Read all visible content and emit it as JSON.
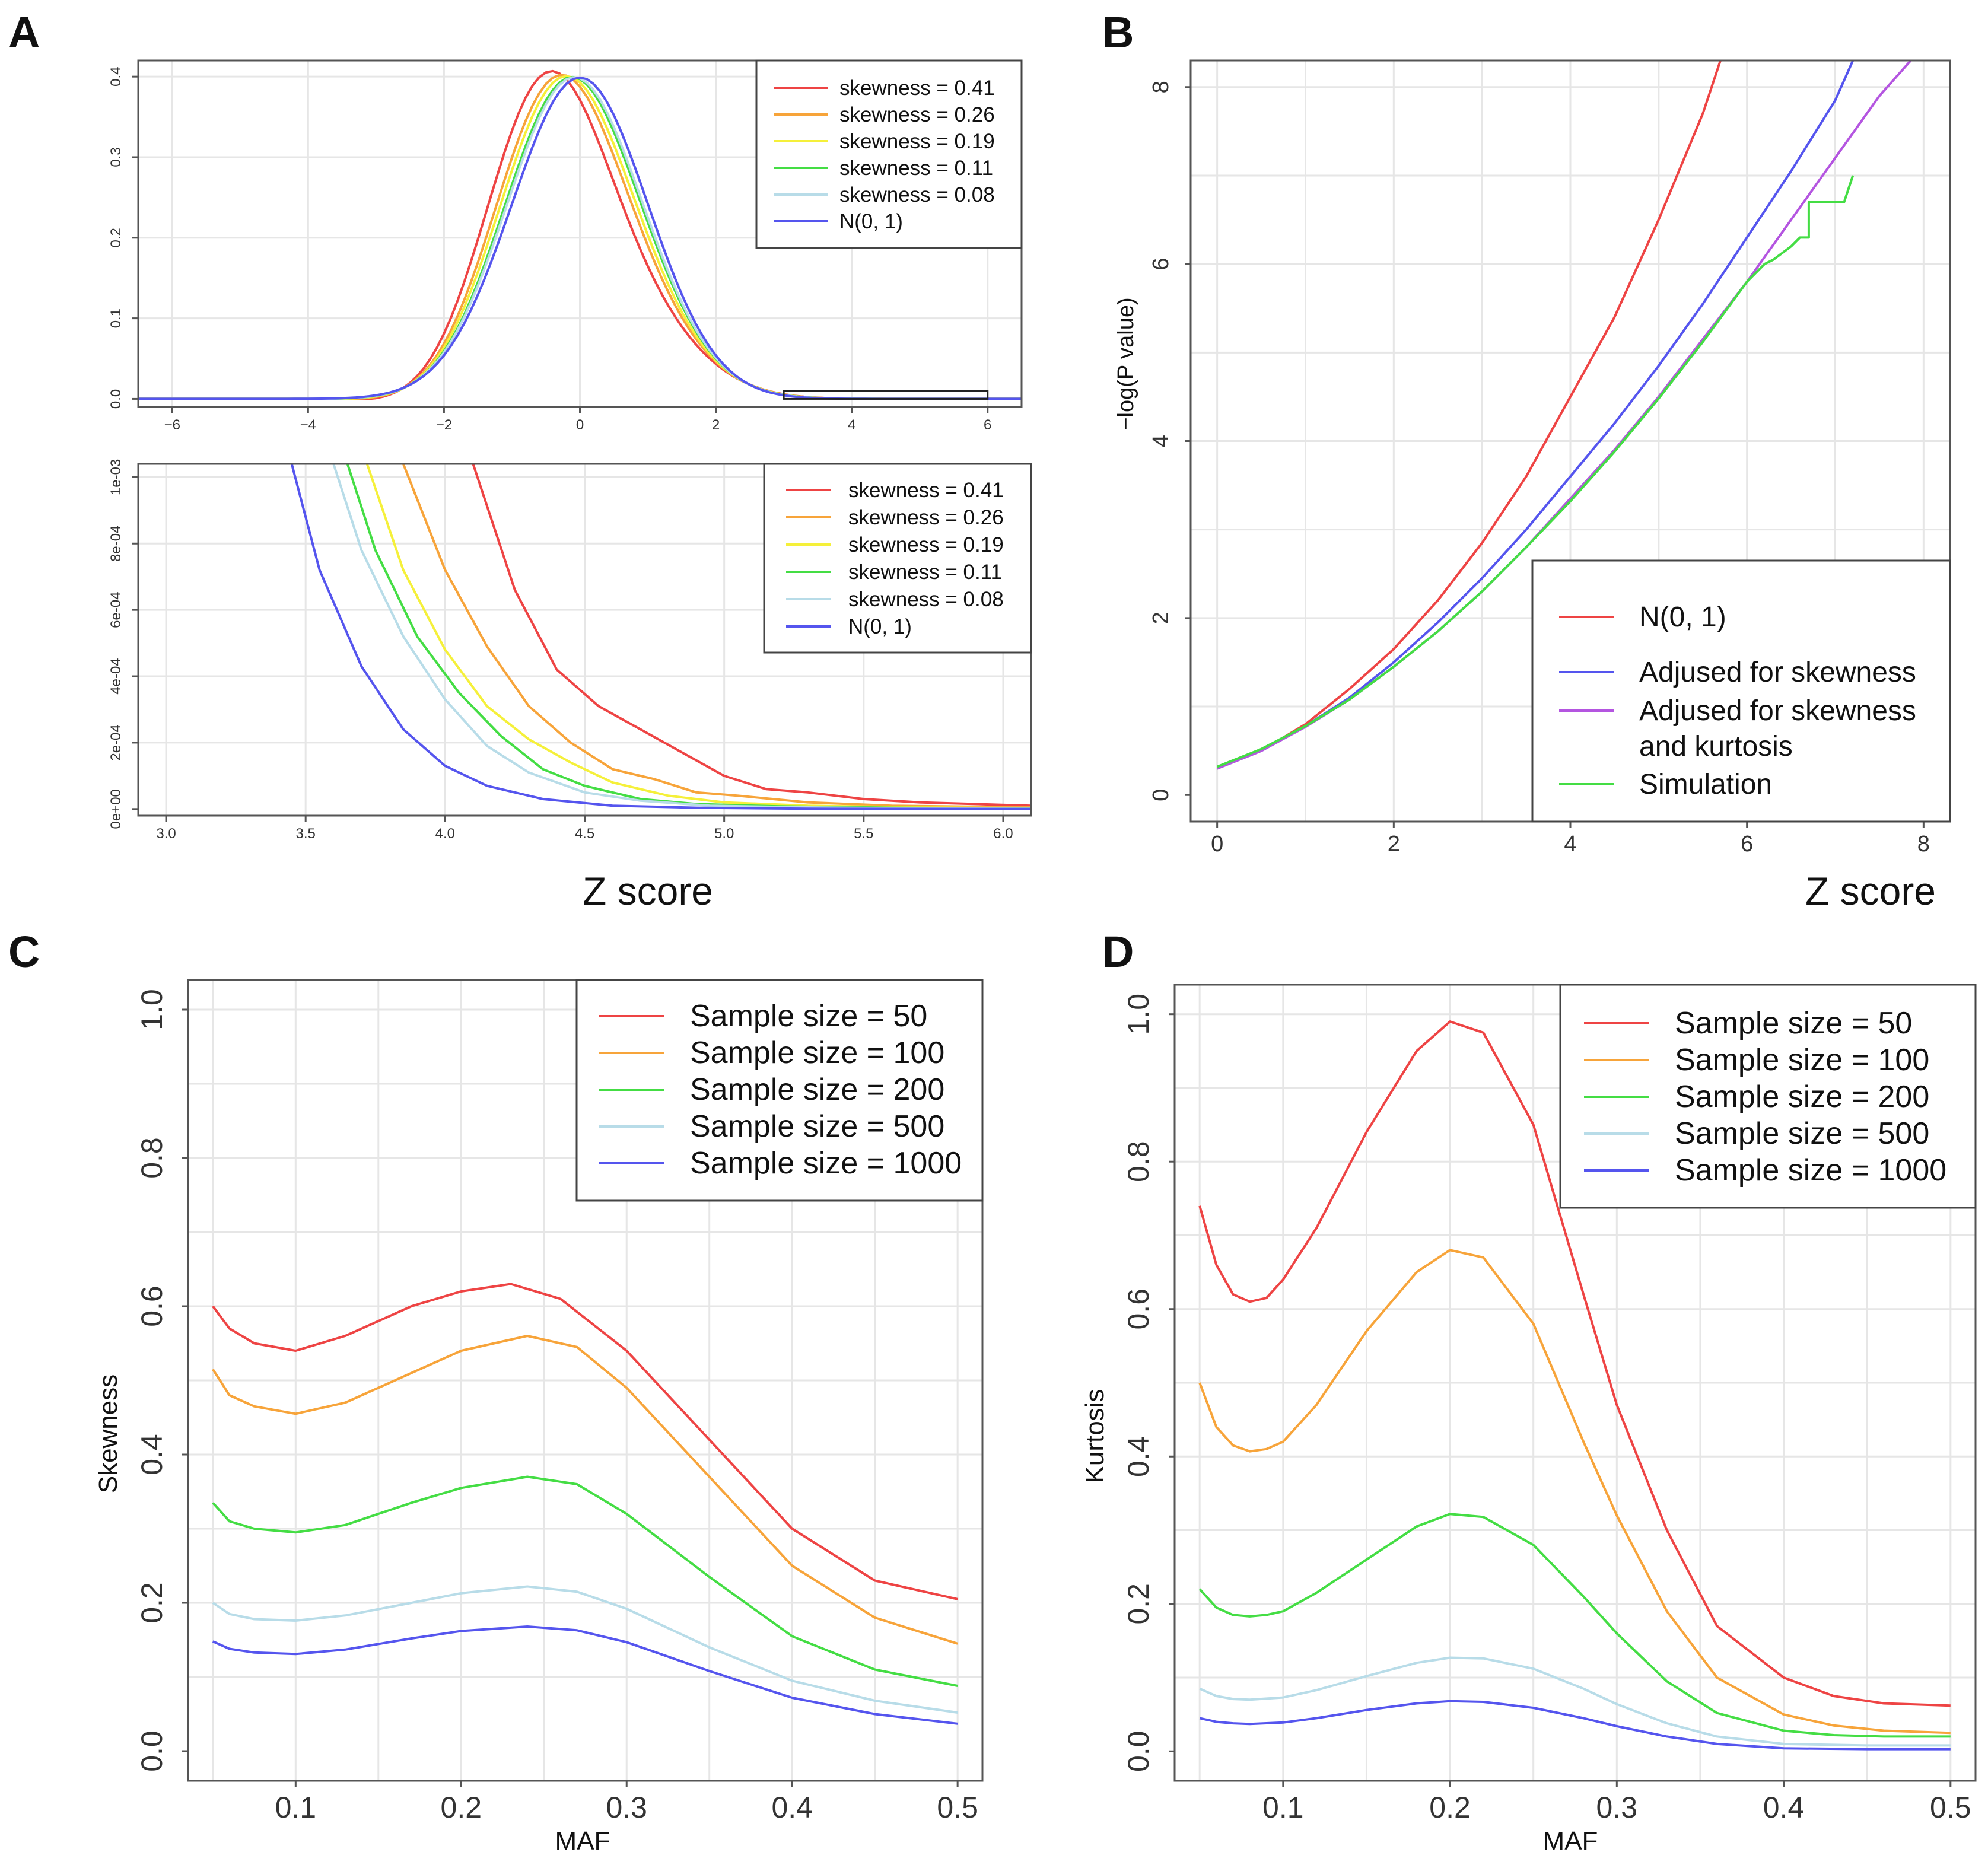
{
  "panels": [
    {
      "id": "A",
      "label": "A"
    },
    {
      "id": "B",
      "label": "B"
    },
    {
      "id": "C",
      "label": "C"
    },
    {
      "id": "D",
      "label": "D"
    }
  ],
  "shared": {
    "z_title": "Z score",
    "colors": {
      "red": "#ee4444",
      "orange": "#f7a43a",
      "yellow": "#f5f03a",
      "green": "#44dd44",
      "lightblue": "#b8dce8",
      "blue": "#5555ee",
      "purple": "#b455e0"
    }
  },
  "chart_data": [
    {
      "id": "A-top",
      "type": "line",
      "title": "",
      "xlabel": "",
      "ylabel": "",
      "xlim": [
        -6.5,
        6.5
      ],
      "ylim": [
        -0.01,
        0.42
      ],
      "xticks": [
        -6,
        -4,
        -2,
        0,
        2,
        4,
        6
      ],
      "xtick_labels": [
        "−6",
        "−4",
        "−2",
        "0",
        "2",
        "4",
        "6"
      ],
      "yticks": [
        0.0,
        0.1,
        0.2,
        0.3,
        0.4
      ],
      "ytick_labels": [
        "0.0",
        "0.1",
        "0.2",
        "0.3",
        "0.4"
      ],
      "series": [
        {
          "name": "skewness = 0.41",
          "color": "#ee4444",
          "skew": 0.41,
          "x": [],
          "y": []
        },
        {
          "name": "skewness = 0.26",
          "color": "#f7a43a",
          "skew": 0.26,
          "x": [],
          "y": []
        },
        {
          "name": "skewness = 0.19",
          "color": "#f5f03a",
          "skew": 0.19,
          "x": [],
          "y": []
        },
        {
          "name": "skewness = 0.11",
          "color": "#44dd44",
          "skew": 0.11,
          "x": [],
          "y": []
        },
        {
          "name": "skewness = 0.08",
          "color": "#b8dce8",
          "skew": 0.08,
          "x": [],
          "y": []
        },
        {
          "name": "N(0, 1)",
          "color": "#5555ee",
          "skew": 0.0,
          "x": [],
          "y": []
        }
      ],
      "legend": [
        "skewness = 0.41",
        "skewness = 0.26",
        "skewness = 0.19",
        "skewness = 0.11",
        "skewness = 0.08",
        "N(0, 1)"
      ],
      "legend_position": "top-right",
      "zoom_box": {
        "x": [
          3,
          6
        ],
        "y": [
          0,
          0.01
        ]
      }
    },
    {
      "id": "A-bottom",
      "type": "line",
      "title": "",
      "xlabel": "Z score",
      "ylabel": "",
      "xlim": [
        2.9,
        6.1
      ],
      "ylim": [
        -2e-05,
        0.00104
      ],
      "xticks": [
        3.0,
        3.5,
        4.0,
        4.5,
        5.0,
        5.5,
        6.0
      ],
      "xtick_labels": [
        "3.0",
        "3.5",
        "4.0",
        "4.5",
        "5.0",
        "5.5",
        "6.0"
      ],
      "yticks": [
        0,
        0.0002,
        0.0004,
        0.0006,
        0.0008,
        0.001
      ],
      "ytick_labels": [
        "0e+00",
        "2e-04",
        "4e-04",
        "6e-04",
        "8e-04",
        "1e-03"
      ],
      "series": [
        {
          "name": "skewness = 0.41",
          "color": "#ee4444",
          "x": [
            4.1,
            4.25,
            4.4,
            4.55,
            4.7,
            4.85,
            5.0,
            5.15,
            5.3,
            5.5,
            5.7,
            5.9,
            6.1
          ],
          "y": [
            0.00104,
            0.00066,
            0.00042,
            0.00031,
            0.00024,
            0.00017,
            0.0001,
            6e-05,
            5e-05,
            3e-05,
            2e-05,
            1.5e-05,
            1e-05
          ]
        },
        {
          "name": "skewness = 0.26",
          "color": "#f7a43a",
          "x": [
            3.85,
            4.0,
            4.15,
            4.3,
            4.45,
            4.6,
            4.75,
            4.9,
            5.05,
            5.3,
            5.6,
            6.1
          ],
          "y": [
            0.00104,
            0.00072,
            0.00049,
            0.00031,
            0.0002,
            0.00012,
            9e-05,
            5e-05,
            4e-05,
            2e-05,
            1e-05,
            5e-06
          ]
        },
        {
          "name": "skewness = 0.19",
          "color": "#f5f03a",
          "x": [
            3.72,
            3.85,
            4.0,
            4.15,
            4.3,
            4.45,
            4.6,
            4.8,
            5.0,
            5.3,
            5.7,
            6.1
          ],
          "y": [
            0.00104,
            0.00072,
            0.00048,
            0.00031,
            0.00021,
            0.00014,
            8e-05,
            4e-05,
            2e-05,
            1e-05,
            5e-06,
            3e-06
          ]
        },
        {
          "name": "skewness = 0.11",
          "color": "#44dd44",
          "x": [
            3.65,
            3.75,
            3.9,
            4.05,
            4.2,
            4.35,
            4.5,
            4.7,
            4.9,
            5.2,
            5.6,
            6.1
          ],
          "y": [
            0.00104,
            0.00078,
            0.00052,
            0.00035,
            0.00022,
            0.00012,
            7e-05,
            3e-05,
            1.5e-05,
            8e-06,
            4e-06,
            2e-06
          ]
        },
        {
          "name": "skewness = 0.08",
          "color": "#b8dce8",
          "x": [
            3.6,
            3.7,
            3.85,
            4.0,
            4.15,
            4.3,
            4.5,
            4.7,
            4.95,
            5.3,
            5.7,
            6.1
          ],
          "y": [
            0.00104,
            0.00078,
            0.00052,
            0.00033,
            0.00019,
            0.00011,
            5e-05,
            2.5e-05,
            1e-05,
            5e-06,
            2e-06,
            1e-06
          ]
        },
        {
          "name": "N(0, 1)",
          "color": "#5555ee",
          "x": [
            3.45,
            3.55,
            3.7,
            3.85,
            4.0,
            4.15,
            4.35,
            4.6,
            4.9,
            5.3,
            5.7,
            6.1
          ],
          "y": [
            0.00104,
            0.00072,
            0.00043,
            0.00024,
            0.00013,
            7e-05,
            3e-05,
            1e-05,
            4e-06,
            1e-06,
            5e-07,
            2e-07
          ]
        }
      ],
      "legend": [
        "skewness = 0.41",
        "skewness = 0.26",
        "skewness = 0.19",
        "skewness = 0.11",
        "skewness = 0.08",
        "N(0, 1)"
      ],
      "legend_position": "top-right"
    },
    {
      "id": "B",
      "type": "line",
      "title": "",
      "xlabel": "Z score",
      "ylabel": "−log(P value)",
      "xlim": [
        -0.3,
        8.3
      ],
      "ylim": [
        -0.3,
        8.3
      ],
      "xticks": [
        0,
        2,
        4,
        6,
        8
      ],
      "xtick_labels": [
        "0",
        "2",
        "4",
        "6",
        "8"
      ],
      "yticks": [
        0,
        2,
        4,
        6,
        8
      ],
      "ytick_labels": [
        "0",
        "2",
        "4",
        "6",
        "8"
      ],
      "series": [
        {
          "name": "N(0, 1)",
          "color": "#ee4444",
          "x": [
            0,
            0.5,
            1,
            1.5,
            2,
            2.5,
            3,
            3.5,
            4,
            4.5,
            5,
            5.5,
            5.7
          ],
          "y": [
            0.3,
            0.5,
            0.8,
            1.2,
            1.65,
            2.2,
            2.85,
            3.6,
            4.5,
            5.4,
            6.5,
            7.7,
            8.3
          ]
        },
        {
          "name": "Adjused for skewness",
          "color": "#5555ee",
          "x": [
            0,
            0.5,
            1,
            1.5,
            2,
            2.5,
            3,
            3.5,
            4,
            4.5,
            5,
            5.5,
            6,
            6.5,
            7,
            7.2
          ],
          "y": [
            0.3,
            0.5,
            0.78,
            1.1,
            1.5,
            1.95,
            2.45,
            3.0,
            3.6,
            4.2,
            4.85,
            5.55,
            6.3,
            7.05,
            7.85,
            8.3
          ]
        },
        {
          "name": "Adjused for skewness and kurtosis",
          "color": "#b455e0",
          "x": [
            0,
            0.5,
            1,
            1.5,
            2,
            2.5,
            3,
            3.5,
            4,
            4.5,
            5,
            5.5,
            6,
            6.5,
            7,
            7.5,
            7.9
          ],
          "y": [
            0.3,
            0.5,
            0.77,
            1.08,
            1.45,
            1.85,
            2.3,
            2.8,
            3.35,
            3.9,
            4.5,
            5.15,
            5.8,
            6.5,
            7.2,
            7.9,
            8.35
          ]
        },
        {
          "name": "Simulation",
          "color": "#44dd44",
          "x": [
            0,
            0.5,
            1,
            1.5,
            2,
            2.5,
            3,
            3.5,
            4,
            4.5,
            5,
            5.5,
            6,
            6.2,
            6.3,
            6.5,
            6.6,
            6.7,
            6.7,
            6.9,
            7.1,
            7.2
          ],
          "y": [
            0.32,
            0.52,
            0.78,
            1.08,
            1.45,
            1.85,
            2.3,
            2.8,
            3.32,
            3.88,
            4.48,
            5.12,
            5.8,
            6.0,
            6.05,
            6.2,
            6.3,
            6.3,
            6.7,
            6.7,
            6.7,
            7.0
          ]
        }
      ],
      "legend": [
        "N(0, 1)",
        "Adjused for skewness",
        "Adjused for skewness",
        "and kurtosis",
        "Simulation"
      ],
      "legend_position": "bottom-right"
    },
    {
      "id": "C",
      "type": "line",
      "title": "",
      "xlabel": "MAF",
      "ylabel": "Skewness",
      "xlim": [
        0.035,
        0.515
      ],
      "ylim": [
        -0.04,
        1.04
      ],
      "xticks": [
        0.1,
        0.2,
        0.3,
        0.4,
        0.5
      ],
      "xtick_labels": [
        "0.1",
        "0.2",
        "0.3",
        "0.4",
        "0.5"
      ],
      "yticks": [
        0.0,
        0.2,
        0.4,
        0.6,
        0.8,
        1.0
      ],
      "ytick_labels": [
        "0.0",
        "0.2",
        "0.4",
        "0.6",
        "0.8",
        "1.0"
      ],
      "series": [
        {
          "name": "Sample size = 50",
          "color": "#ee4444",
          "x": [
            0.05,
            0.06,
            0.075,
            0.1,
            0.13,
            0.17,
            0.2,
            0.23,
            0.26,
            0.3,
            0.35,
            0.4,
            0.45,
            0.5
          ],
          "y": [
            0.6,
            0.57,
            0.55,
            0.54,
            0.56,
            0.6,
            0.62,
            0.63,
            0.61,
            0.54,
            0.42,
            0.3,
            0.23,
            0.205
          ]
        },
        {
          "name": "Sample size = 100",
          "color": "#f7a43a",
          "x": [
            0.05,
            0.06,
            0.075,
            0.1,
            0.13,
            0.17,
            0.2,
            0.24,
            0.27,
            0.3,
            0.35,
            0.4,
            0.45,
            0.5
          ],
          "y": [
            0.515,
            0.48,
            0.465,
            0.455,
            0.47,
            0.51,
            0.54,
            0.56,
            0.545,
            0.49,
            0.37,
            0.25,
            0.18,
            0.145
          ]
        },
        {
          "name": "Sample size = 200",
          "color": "#44dd44",
          "x": [
            0.05,
            0.06,
            0.075,
            0.1,
            0.13,
            0.17,
            0.2,
            0.24,
            0.27,
            0.3,
            0.35,
            0.4,
            0.45,
            0.5
          ],
          "y": [
            0.335,
            0.31,
            0.3,
            0.295,
            0.305,
            0.335,
            0.355,
            0.37,
            0.36,
            0.32,
            0.235,
            0.155,
            0.11,
            0.088
          ]
        },
        {
          "name": "Sample size = 500",
          "color": "#b8dce8",
          "x": [
            0.05,
            0.06,
            0.075,
            0.1,
            0.13,
            0.17,
            0.2,
            0.24,
            0.27,
            0.3,
            0.35,
            0.4,
            0.45,
            0.5
          ],
          "y": [
            0.2,
            0.185,
            0.178,
            0.176,
            0.183,
            0.2,
            0.213,
            0.222,
            0.215,
            0.192,
            0.14,
            0.095,
            0.068,
            0.052
          ]
        },
        {
          "name": "Sample size = 1000",
          "color": "#5555ee",
          "x": [
            0.05,
            0.06,
            0.075,
            0.1,
            0.13,
            0.17,
            0.2,
            0.24,
            0.27,
            0.3,
            0.35,
            0.4,
            0.45,
            0.5
          ],
          "y": [
            0.148,
            0.138,
            0.133,
            0.131,
            0.137,
            0.152,
            0.162,
            0.168,
            0.163,
            0.147,
            0.108,
            0.072,
            0.05,
            0.037
          ]
        }
      ],
      "legend": [
        "Sample size = 50",
        "Sample size = 100",
        "Sample size = 200",
        "Sample size = 500",
        "Sample size = 1000"
      ],
      "legend_position": "top-right"
    },
    {
      "id": "D",
      "type": "line",
      "title": "",
      "xlabel": "MAF",
      "ylabel": "Kurtosis",
      "xlim": [
        0.035,
        0.515
      ],
      "ylim": [
        -0.04,
        1.04
      ],
      "xticks": [
        0.1,
        0.2,
        0.3,
        0.4,
        0.5
      ],
      "xtick_labels": [
        "0.1",
        "0.2",
        "0.3",
        "0.4",
        "0.5"
      ],
      "yticks": [
        0.0,
        0.2,
        0.4,
        0.6,
        0.8,
        1.0
      ],
      "ytick_labels": [
        "0.0",
        "0.2",
        "0.4",
        "0.6",
        "0.8",
        "1.0"
      ],
      "series": [
        {
          "name": "Sample size = 50",
          "color": "#ee4444",
          "x": [
            0.05,
            0.06,
            0.07,
            0.08,
            0.09,
            0.1,
            0.12,
            0.15,
            0.18,
            0.2,
            0.22,
            0.25,
            0.28,
            0.3,
            0.33,
            0.36,
            0.4,
            0.43,
            0.46,
            0.5
          ],
          "y": [
            0.74,
            0.66,
            0.62,
            0.61,
            0.615,
            0.64,
            0.71,
            0.84,
            0.95,
            0.99,
            0.975,
            0.85,
            0.62,
            0.47,
            0.3,
            0.17,
            0.1,
            0.075,
            0.065,
            0.062
          ]
        },
        {
          "name": "Sample size = 100",
          "color": "#f7a43a",
          "x": [
            0.05,
            0.06,
            0.07,
            0.08,
            0.09,
            0.1,
            0.12,
            0.15,
            0.18,
            0.2,
            0.22,
            0.25,
            0.28,
            0.3,
            0.33,
            0.36,
            0.4,
            0.43,
            0.46,
            0.5
          ],
          "y": [
            0.5,
            0.44,
            0.415,
            0.407,
            0.41,
            0.42,
            0.47,
            0.57,
            0.65,
            0.68,
            0.67,
            0.58,
            0.42,
            0.32,
            0.19,
            0.1,
            0.05,
            0.035,
            0.028,
            0.025
          ]
        },
        {
          "name": "Sample size = 200",
          "color": "#44dd44",
          "x": [
            0.05,
            0.06,
            0.07,
            0.08,
            0.09,
            0.1,
            0.12,
            0.15,
            0.18,
            0.2,
            0.22,
            0.25,
            0.28,
            0.3,
            0.33,
            0.36,
            0.4,
            0.43,
            0.46,
            0.5
          ],
          "y": [
            0.22,
            0.195,
            0.185,
            0.183,
            0.185,
            0.19,
            0.215,
            0.26,
            0.305,
            0.322,
            0.318,
            0.28,
            0.21,
            0.16,
            0.095,
            0.052,
            0.028,
            0.022,
            0.02,
            0.02
          ]
        },
        {
          "name": "Sample size = 500",
          "color": "#b8dce8",
          "x": [
            0.05,
            0.06,
            0.07,
            0.08,
            0.1,
            0.12,
            0.15,
            0.18,
            0.2,
            0.22,
            0.25,
            0.28,
            0.3,
            0.33,
            0.36,
            0.4,
            0.45,
            0.5
          ],
          "y": [
            0.085,
            0.075,
            0.071,
            0.07,
            0.073,
            0.083,
            0.102,
            0.12,
            0.127,
            0.126,
            0.112,
            0.085,
            0.064,
            0.038,
            0.02,
            0.01,
            0.008,
            0.008
          ]
        },
        {
          "name": "Sample size = 1000",
          "color": "#5555ee",
          "x": [
            0.05,
            0.06,
            0.07,
            0.08,
            0.1,
            0.12,
            0.15,
            0.18,
            0.2,
            0.22,
            0.25,
            0.28,
            0.3,
            0.33,
            0.36,
            0.4,
            0.45,
            0.5
          ],
          "y": [
            0.045,
            0.04,
            0.038,
            0.037,
            0.039,
            0.045,
            0.056,
            0.065,
            0.068,
            0.067,
            0.059,
            0.045,
            0.034,
            0.02,
            0.01,
            0.004,
            0.003,
            0.003
          ]
        }
      ],
      "legend": [
        "Sample size = 50",
        "Sample size = 100",
        "Sample size = 200",
        "Sample size = 500",
        "Sample size = 1000"
      ],
      "legend_position": "top-right"
    }
  ]
}
